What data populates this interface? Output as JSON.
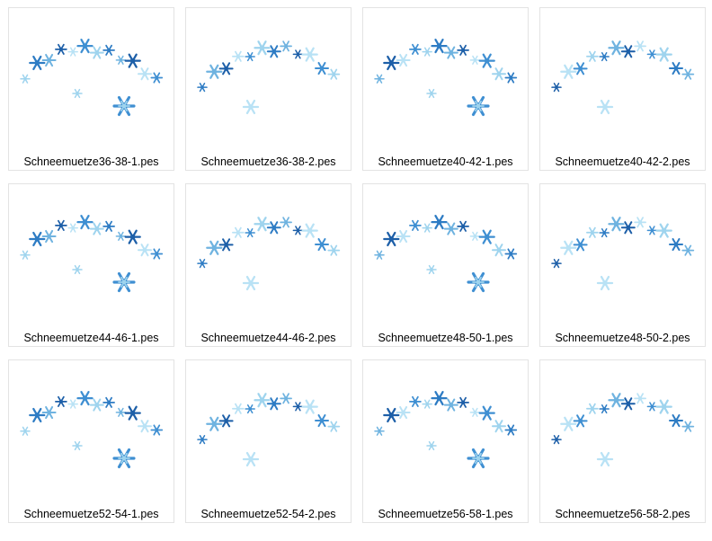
{
  "files": [
    "Schneemuetze36-38-1.pes",
    "Schneemuetze36-38-2.pes",
    "Schneemuetze40-42-1.pes",
    "Schneemuetze40-42-2.pes",
    "Schneemuetze44-46-1.pes",
    "Schneemuetze44-46-2.pes",
    "Schneemuetze48-50-1.pes",
    "Schneemuetze48-50-2.pes",
    "Schneemuetze52-54-1.pes",
    "Schneemuetze52-54-2.pes",
    "Schneemuetze56-58-1.pes",
    "Schneemuetze56-58-2.pes"
  ]
}
